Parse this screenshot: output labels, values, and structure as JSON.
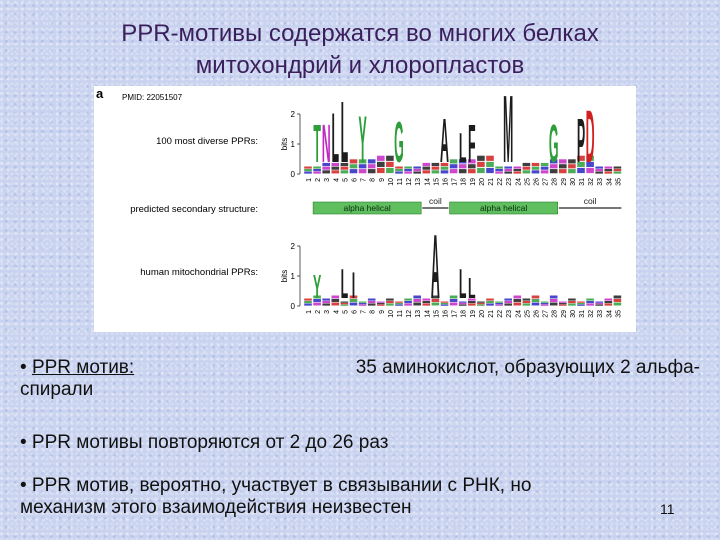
{
  "slide": {
    "title_line1": "PPR-мотивы содержатся во многих белках",
    "title_line2": "митохондрий и хлоропластов",
    "page_number": "11"
  },
  "figure": {
    "panel_letter": "a",
    "pmid": "PMID: 22051507",
    "top_logo_label": "100 most diverse PPRs:",
    "structure_label": "predicted secondary structure:",
    "bottom_logo_label": "human mitochondrial PPRs:",
    "bits_label": "bits",
    "y_ticks": [
      "2",
      "1",
      "0"
    ],
    "positions": [
      "1",
      "2",
      "3",
      "4",
      "5",
      "6",
      "7",
      "8",
      "9",
      "10",
      "11",
      "12",
      "13",
      "14",
      "15",
      "16",
      "17",
      "18",
      "19",
      "20",
      "21",
      "22",
      "23",
      "24",
      "25",
      "26",
      "27",
      "28",
      "29",
      "30",
      "31",
      "32",
      "33",
      "34",
      "35"
    ],
    "segments": [
      {
        "label": "alpha helical",
        "start": 2,
        "end": 13,
        "type": "helix"
      },
      {
        "label": "coil",
        "start": 14,
        "end": 16,
        "type": "coil"
      },
      {
        "label": "alpha helical",
        "start": 17,
        "end": 28,
        "type": "helix"
      },
      {
        "label": "coil",
        "start": 29,
        "end": 35,
        "type": "coil"
      }
    ],
    "top_letters": [
      {
        "pos": 2,
        "letter": "T",
        "height": 1.3,
        "color": "#2e9e3b"
      },
      {
        "pos": 3,
        "letter": "N",
        "height": 1.3,
        "color": "#c327c3"
      },
      {
        "pos": 4,
        "letter": "L",
        "height": 1.7,
        "color": "#1c1c1c"
      },
      {
        "pos": 5,
        "letter": "L",
        "height": 2.1,
        "color": "#1c1c1c"
      },
      {
        "pos": 7,
        "letter": "Y",
        "height": 1.6,
        "color": "#2e9e3b"
      },
      {
        "pos": 11,
        "letter": "G",
        "height": 1.4,
        "color": "#2e9e3b"
      },
      {
        "pos": 16,
        "letter": "A",
        "height": 1.5,
        "color": "#1c1c1c"
      },
      {
        "pos": 18,
        "letter": "L",
        "height": 1.0,
        "color": "#1c1c1c"
      },
      {
        "pos": 19,
        "letter": "F",
        "height": 1.3,
        "color": "#1c1c1c"
      },
      {
        "pos": 23,
        "letter": "M",
        "height": 2.3,
        "color": "#1c1c1c"
      },
      {
        "pos": 28,
        "letter": "G",
        "height": 1.3,
        "color": "#2e9e3b"
      },
      {
        "pos": 31,
        "letter": "P",
        "height": 1.5,
        "color": "#1c1c1c"
      },
      {
        "pos": 32,
        "letter": "D",
        "height": 1.8,
        "color": "#d22020"
      }
    ],
    "bottom_letters": [
      {
        "pos": 2,
        "letter": "Y",
        "height": 0.8,
        "color": "#2e9e3b"
      },
      {
        "pos": 5,
        "letter": "L",
        "height": 1.0,
        "color": "#1c1c1c"
      },
      {
        "pos": 6,
        "letter": "I",
        "height": 0.9,
        "color": "#1c1c1c"
      },
      {
        "pos": 15,
        "letter": "A",
        "height": 2.2,
        "color": "#1c1c1c"
      },
      {
        "pos": 18,
        "letter": "L",
        "height": 1.0,
        "color": "#1c1c1c"
      },
      {
        "pos": 19,
        "letter": "L",
        "height": 0.7,
        "color": "#1c1c1c"
      }
    ]
  },
  "bullets": {
    "b1_bullet": "• ",
    "b1_underlined": "PPR мотив:",
    "b1_rest": "35 аминокислот, образующих 2 альфа-",
    "b1_line2": "спирали",
    "b2": "• PPR мотивы повторяются от 2 до 26 раз",
    "b3_line1": "• PPR мотив, вероятно, участвует в связывании с РНК, но",
    "b3_line2": "механизм этого взаимодействия неизвестен"
  },
  "colors": {
    "title": "#3a1f5c",
    "helix": "#5fbf5f",
    "coil_line": "#4a4a4a",
    "background": "#c9d3ef"
  }
}
